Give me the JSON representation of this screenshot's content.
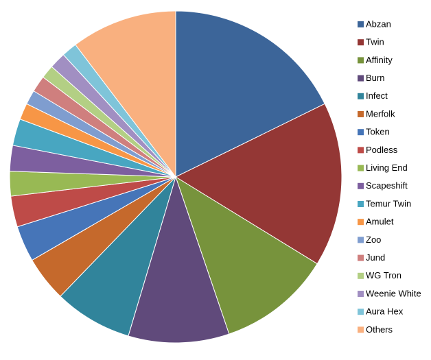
{
  "chart_data": {
    "type": "pie",
    "categories": [
      "Abzan",
      "Twin",
      "Affinity",
      "Burn",
      "Infect",
      "Merfolk",
      "Token",
      "Podless",
      "Living End",
      "Scapeshift",
      "Temur Twin",
      "Amulet",
      "Zoo",
      "Jund",
      "WG Tron",
      "Weenie White",
      "Aura Hex",
      "Others"
    ],
    "values": [
      17.7,
      16,
      11,
      9.8,
      7.6,
      4.4,
      3.5,
      3,
      2.4,
      2.5,
      2.6,
      1.6,
      1.4,
      1.6,
      1.3,
      1.6,
      1.5,
      10.3
    ],
    "colors": [
      "#3c6599",
      "#943735",
      "#77933c",
      "#604a7b",
      "#31849b",
      "#c5692c",
      "#4675b8",
      "#be4b48",
      "#98b954",
      "#7d5f9f",
      "#48a6c1",
      "#f79646",
      "#7f9dcf",
      "#cf7f7e",
      "#b3cf84",
      "#a18fc2",
      "#7fc4d9",
      "#f9b07f"
    ],
    "legend": "right"
  }
}
